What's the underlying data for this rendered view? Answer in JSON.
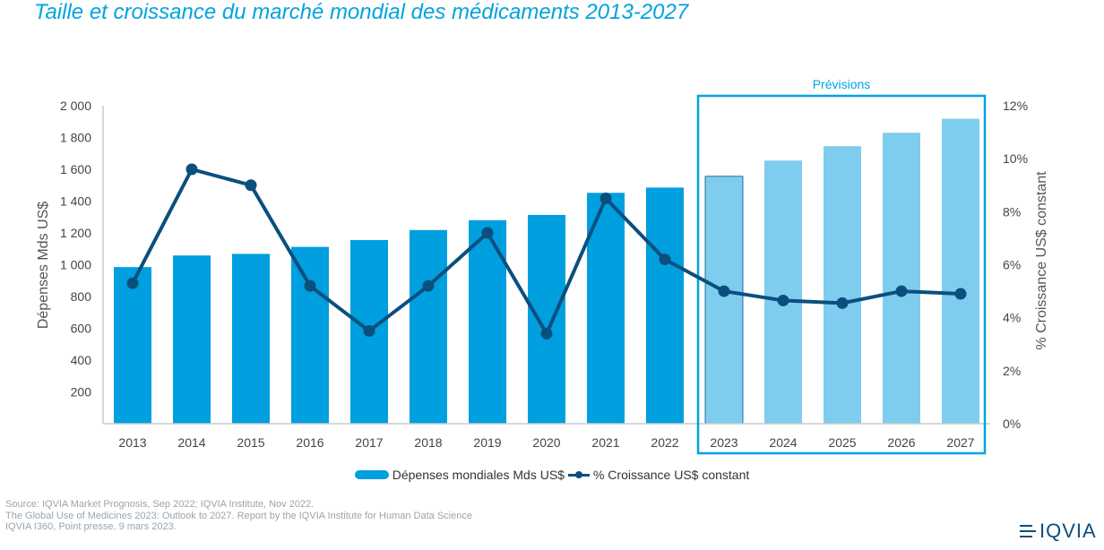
{
  "subtitle": "Taille et croissance du marché mondial des médicaments 2013-2027",
  "chart_data": {
    "type": "bar",
    "categories": [
      "2013",
      "2014",
      "2015",
      "2016",
      "2017",
      "2018",
      "2019",
      "2020",
      "2021",
      "2022",
      "2023",
      "2024",
      "2025",
      "2026",
      "2027"
    ],
    "series": [
      {
        "name": "Dépenses mondiales Mds US$",
        "kind": "bar",
        "axis": "left",
        "values": [
          985,
          1058,
          1068,
          1112,
          1155,
          1218,
          1280,
          1313,
          1452,
          1485,
          1556,
          1655,
          1745,
          1830,
          1918
        ],
        "color": "#009fdf",
        "forecast_color": "#7ecdee"
      },
      {
        "name": "% Croissance US$ constant",
        "kind": "line",
        "axis": "right",
        "values": [
          5.3,
          9.6,
          9.0,
          5.2,
          3.5,
          5.2,
          7.2,
          3.4,
          8.5,
          6.2,
          5.0,
          4.65,
          4.55,
          5.0,
          4.9
        ],
        "color": "#0b4f7e"
      }
    ],
    "ylabel": "Dépenses Mds US$",
    "y2label": "% Croissance US$ constant",
    "ylim": [
      0,
      2000
    ],
    "y2lim": [
      0,
      12
    ],
    "y_ticks": [
      "200",
      "400",
      "600",
      "800",
      "1 000",
      "1 200",
      "1 400",
      "1 600",
      "1 800",
      "2 000"
    ],
    "y2_ticks": [
      "0%",
      "2%",
      "4%",
      "6%",
      "8%",
      "10%",
      "12%"
    ],
    "forecast_label": "Prévisions",
    "forecast_from": "2023",
    "legend_position": "bottom-center",
    "grid": false
  },
  "footer": [
    "Source: IQVIA Market Prognosis, Sep 2022; IQVIA Institute, Nov 2022.",
    "The Global Use of Medicines 2023: Outlook to 2027. Report by the IQVIA Institute for Human Data Science",
    "IQVIA I360, Point presse, 9 mars 2023."
  ],
  "logo_text": "IQVIA"
}
